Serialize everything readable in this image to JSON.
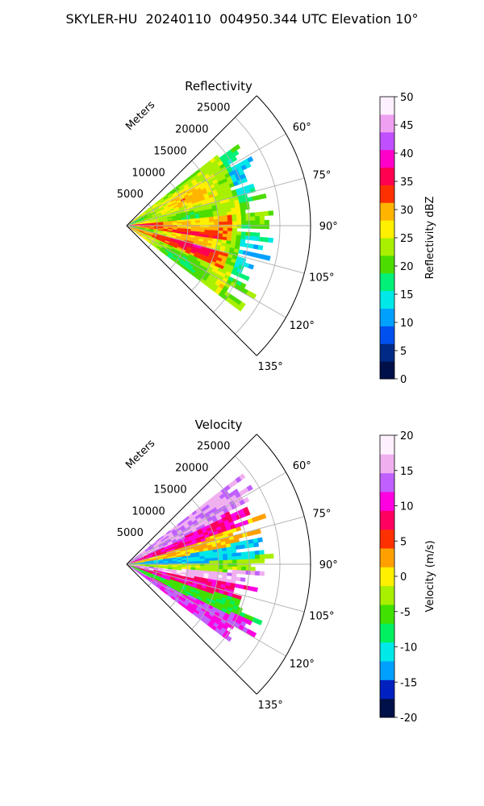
{
  "figure": {
    "title": "SKYLER-HU  20240110  004950.344 UTC Elevation 10°"
  },
  "chart_data": [
    {
      "type": "heatmap",
      "subtype": "polar-sector-radar",
      "title": "Reflectivity",
      "radial_label": "Meters",
      "radial_ticks": [
        5000,
        10000,
        15000,
        20000,
        25000
      ],
      "radial_range": [
        0,
        30000
      ],
      "angular_range_deg": [
        45,
        135
      ],
      "angular_ticks_deg": [
        60,
        75,
        90,
        105,
        120,
        135
      ],
      "angular_tick_labels": [
        "60°",
        "75°",
        "90°",
        "105°",
        "120°",
        "135°"
      ],
      "grid": true,
      "colorbar": {
        "label": "Reflectivity dBZ",
        "range": [
          0,
          50
        ],
        "ticks": [
          0,
          5,
          10,
          15,
          20,
          25,
          30,
          35,
          40,
          45,
          50
        ],
        "colors": [
          "#001048",
          "#002a86",
          "#0050f0",
          "#00a0ff",
          "#00e8e8",
          "#00f078",
          "#4cdc00",
          "#a8f000",
          "#fff000",
          "#ffb400",
          "#ff3000",
          "#ff0050",
          "#ff00c8",
          "#c050ff",
          "#f0a0f0",
          "#fff0ff"
        ]
      },
      "data_summary": {
        "echo_extent_m": [
          0,
          24000
        ],
        "azimuth_extent_deg": [
          52,
          127
        ],
        "core_values_dbz": [
          30,
          38
        ],
        "edge_values_dbz": [
          15,
          22
        ]
      }
    },
    {
      "type": "heatmap",
      "subtype": "polar-sector-radar",
      "title": "Velocity",
      "radial_label": "Meters",
      "radial_ticks": [
        5000,
        10000,
        15000,
        20000,
        25000
      ],
      "radial_range": [
        0,
        30000
      ],
      "angular_range_deg": [
        45,
        135
      ],
      "angular_ticks_deg": [
        60,
        75,
        90,
        105,
        120,
        135
      ],
      "angular_tick_labels": [
        "60°",
        "75°",
        "90°",
        "105°",
        "120°",
        "135°"
      ],
      "grid": true,
      "colorbar": {
        "label": "Velocity (m/s)",
        "range": [
          -20,
          20
        ],
        "ticks": [
          -20,
          -15,
          -10,
          -5,
          0,
          5,
          10,
          15,
          20
        ],
        "colors": [
          "#001048",
          "#0020c0",
          "#00a0ff",
          "#00e8e8",
          "#00f060",
          "#40e000",
          "#a8f000",
          "#fff000",
          "#ffa000",
          "#ff3000",
          "#ff0060",
          "#ff00e0",
          "#c060ff",
          "#f0b0f0",
          "#fff0ff"
        ]
      },
      "data_summary": {
        "echo_extent_m": [
          0,
          24000
        ],
        "azimuth_extent_deg": [
          52,
          127
        ],
        "inbound_band_center_deg": 88,
        "outbound_band_center_deg": 104,
        "velocity_range_ms": [
          -17,
          20
        ]
      }
    }
  ]
}
